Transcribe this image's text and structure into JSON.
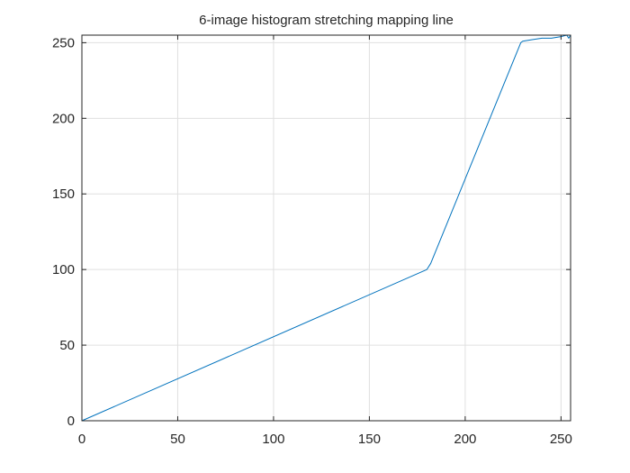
{
  "chart_data": {
    "type": "line",
    "title": "6-image histogram stretching mapping line",
    "xlabel": "",
    "ylabel": "",
    "xlim": [
      0,
      255
    ],
    "ylim": [
      0,
      255
    ],
    "xticks": [
      0,
      50,
      100,
      150,
      200,
      250
    ],
    "yticks": [
      0,
      50,
      100,
      150,
      200,
      250
    ],
    "grid": true,
    "series": [
      {
        "color": "#0072BD",
        "x": [
          0,
          180,
          182,
          229,
          230,
          235,
          240,
          245,
          250,
          253,
          254,
          255
        ],
        "y": [
          0,
          100,
          104,
          250,
          251,
          252,
          253,
          253,
          254,
          255,
          253,
          255
        ]
      }
    ]
  }
}
